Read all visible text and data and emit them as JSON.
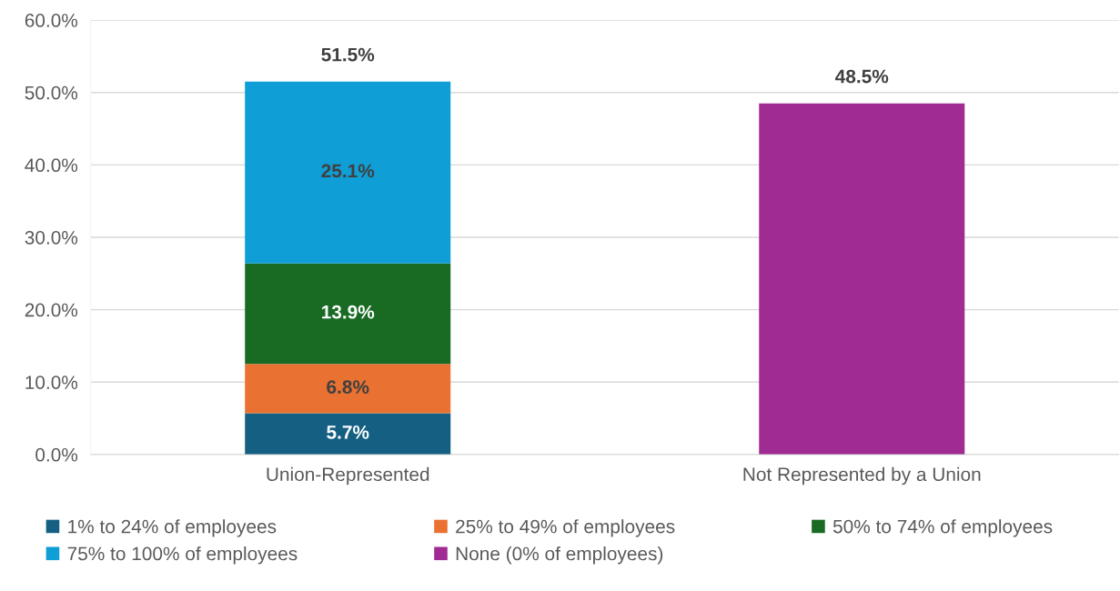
{
  "chart_data": {
    "type": "bar",
    "stacked": true,
    "categories": [
      "Union-Represented",
      "Not Represented by a Union"
    ],
    "series": [
      {
        "name": "1% to 24% of employees",
        "color": "#156082",
        "values": [
          5.7,
          null
        ],
        "value_labels": [
          "5.7%",
          null
        ]
      },
      {
        "name": "25% to 49% of employees",
        "color": "#e97132",
        "values": [
          6.8,
          null
        ],
        "value_labels": [
          "6.8%",
          null
        ]
      },
      {
        "name": "50% to 74% of employees",
        "color": "#196b24",
        "values": [
          13.9,
          null
        ],
        "value_labels": [
          "13.9%",
          null
        ]
      },
      {
        "name": "75% to 100% of employees",
        "color": "#0f9ed5",
        "values": [
          25.1,
          null
        ],
        "value_labels": [
          "25.1%",
          null
        ]
      },
      {
        "name": "None (0% of employees)",
        "color": "#a02b93",
        "values": [
          null,
          48.5
        ],
        "value_labels": [
          null,
          null
        ]
      }
    ],
    "totals": [
      "51.5%",
      "48.5%"
    ],
    "ylim": [
      0,
      60
    ],
    "yticks": [
      {
        "value": 0,
        "label": "0.0%"
      },
      {
        "value": 10,
        "label": "10.0%"
      },
      {
        "value": 20,
        "label": "20.0%"
      },
      {
        "value": 30,
        "label": "30.0%"
      },
      {
        "value": 40,
        "label": "40.0%"
      },
      {
        "value": 50,
        "label": "50.0%"
      },
      {
        "value": 60,
        "label": "60.0%"
      }
    ],
    "grid": "y",
    "legend": "bottom"
  }
}
